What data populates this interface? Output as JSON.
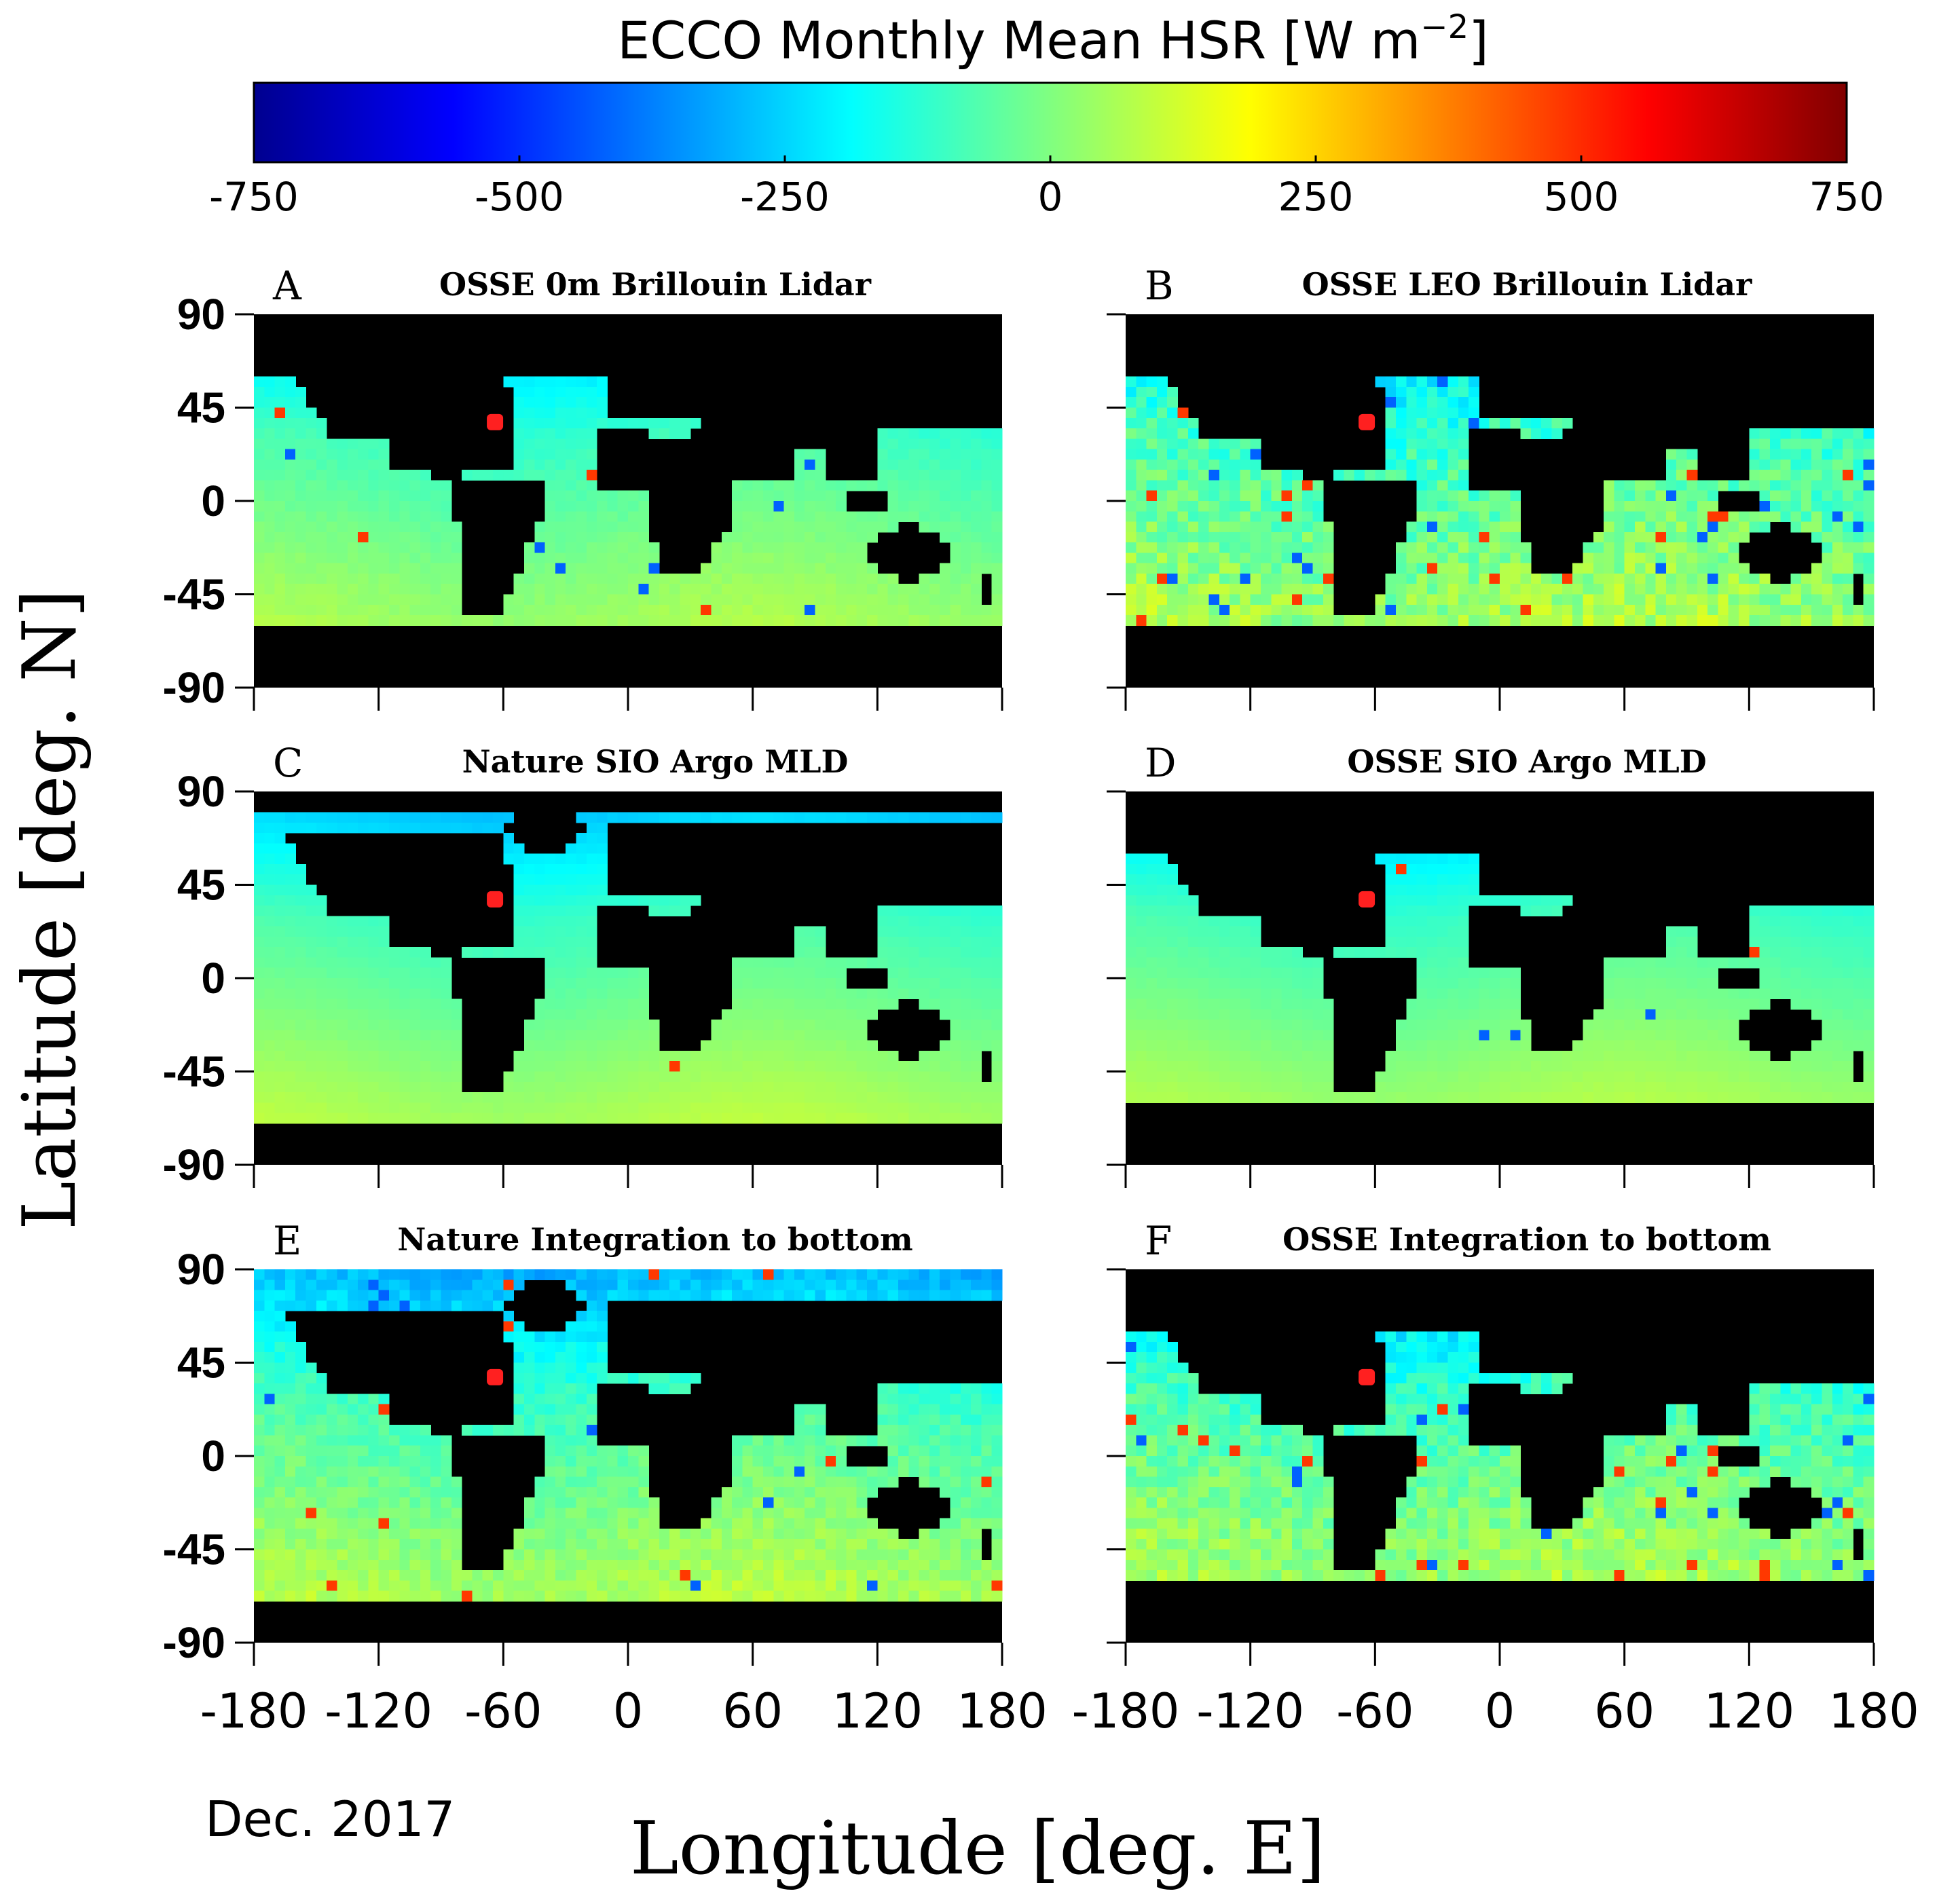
{
  "figure": {
    "colorbar_label": "ECCO Monthly Mean HSR [W m",
    "colorbar_label_sup": "−2",
    "colorbar_label_end": "]",
    "date_label": "Dec. 2017",
    "y_axis_label": "Latitude [deg. N]",
    "x_axis_label": "Longitude [deg. E]"
  },
  "colors": {
    "land": "#000000",
    "highlight": "#ff2020",
    "colormap": [
      "#00008f",
      "#0000ff",
      "#0080ff",
      "#00ffff",
      "#80ff80",
      "#ffff00",
      "#ff8000",
      "#ff0000",
      "#800000"
    ]
  },
  "chart_data": [
    {
      "type": "colorbar",
      "range": [
        -750,
        750
      ],
      "ticks": [
        -750,
        -500,
        -250,
        0,
        250,
        500,
        750
      ],
      "tick_labels": [
        "-750",
        "-500",
        "-250",
        "0",
        "250",
        "500",
        "750"
      ]
    },
    {
      "type": "heatmap",
      "panel": "A",
      "title": "OSSE 0m Brillouin Lidar",
      "xlim": [
        -180,
        180
      ],
      "ylim": [
        -90,
        90
      ],
      "ocean_lat_range": [
        -60,
        60
      ],
      "noise": 0.05,
      "highlight": [
        -64,
        38
      ]
    },
    {
      "type": "heatmap",
      "panel": "B",
      "title": "OSSE LEO Brillouin Lidar",
      "xlim": [
        -180,
        180
      ],
      "ylim": [
        -90,
        90
      ],
      "ocean_lat_range": [
        -60,
        60
      ],
      "noise": 0.3,
      "highlight": [
        -64,
        38
      ]
    },
    {
      "type": "heatmap",
      "panel": "C",
      "title": "Nature SIO Argo MLD",
      "xlim": [
        -180,
        180
      ],
      "ylim": [
        -90,
        90
      ],
      "ocean_lat_range": [
        -72,
        82
      ],
      "noise": 0.02,
      "highlight": [
        -64,
        38
      ]
    },
    {
      "type": "heatmap",
      "panel": "D",
      "title": "OSSE SIO Argo MLD",
      "xlim": [
        -180,
        180
      ],
      "ylim": [
        -90,
        90
      ],
      "ocean_lat_range": [
        -60,
        60
      ],
      "noise": 0.02,
      "highlight": [
        -64,
        38
      ]
    },
    {
      "type": "heatmap",
      "panel": "E",
      "title": "Nature Integration to bottom",
      "xlim": [
        -180,
        180
      ],
      "ylim": [
        -90,
        90
      ],
      "ocean_lat_range": [
        -78,
        90
      ],
      "noise": 0.15,
      "highlight": [
        -64,
        38
      ]
    },
    {
      "type": "heatmap",
      "panel": "F",
      "title": "OSSE Integration to bottom",
      "xlim": [
        -180,
        180
      ],
      "ylim": [
        -90,
        90
      ],
      "ocean_lat_range": [
        -60,
        60
      ],
      "noise": 0.25,
      "highlight": [
        -64,
        38
      ]
    },
    {
      "type": "axes",
      "y_ticks": [
        90,
        45,
        0,
        -45,
        -90
      ],
      "y_tick_labels": [
        "90",
        "45",
        "0",
        "-45",
        "-90"
      ],
      "x_ticks": [
        -180,
        -120,
        -60,
        0,
        60,
        120,
        180
      ],
      "x_tick_labels": [
        "-180",
        "-120",
        "-60",
        "0",
        "60",
        "120",
        "180"
      ]
    }
  ]
}
